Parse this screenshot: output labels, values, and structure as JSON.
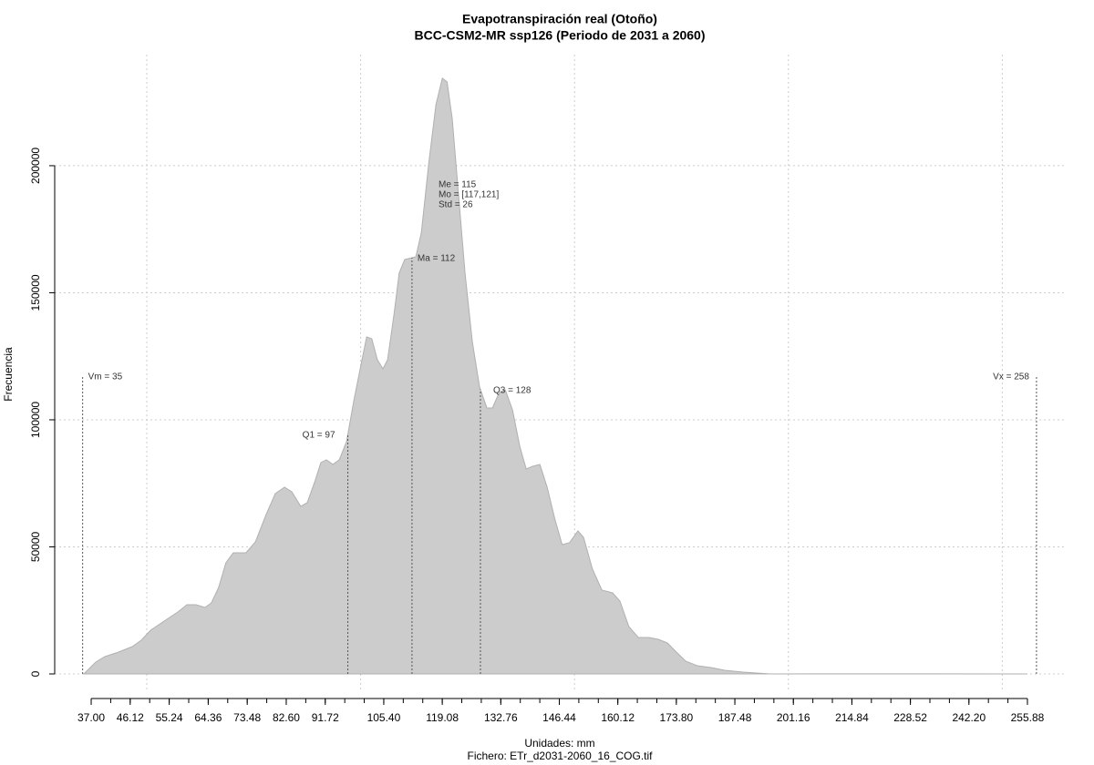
{
  "chart_data": {
    "type": "area",
    "title": "Evapotranspiración real (Otoño)",
    "subtitle": "BCC-CSM2-MR ssp126 (Periodo de 2031 a 2060)",
    "xlabel": "Unidades: mm",
    "caption": "Fichero: ETr_d2031-2060_16_COG.tif",
    "ylabel": "Frecuencia",
    "color": "#cccccc",
    "x": [
      35.3,
      37,
      38.07,
      40.2,
      43.4,
      46.6,
      48.7,
      50.9,
      54.05,
      57.25,
      59.4,
      61.5,
      63.6,
      65.1,
      66.8,
      68.5,
      70.2,
      73.2,
      75.4,
      77.9,
      80.05,
      82.2,
      83.9,
      86.0,
      87.5,
      89.2,
      90.7,
      92.0,
      93.5,
      95.0,
      96.7,
      98.4,
      100.1,
      101.4,
      102.6,
      103.9,
      105.2,
      106.3,
      107.8,
      109.0,
      110.3,
      112.9,
      114.2,
      115.9,
      117.6,
      119.1,
      120.2,
      121.4,
      122.9,
      124.4,
      126.1,
      127.8,
      129.5,
      130.8,
      132.3,
      133.8,
      135.5,
      137.2,
      138.7,
      140.2,
      141.9,
      143.6,
      145.4,
      147.1,
      148.8,
      150.8,
      152.1,
      154.2,
      156.4,
      158.9,
      160.6,
      162.7,
      164.9,
      167.4,
      169.6,
      171.7,
      173.8,
      176.0,
      178.7,
      181.9,
      185.1,
      189.4,
      195.8,
      207.5,
      255.88
    ],
    "values": [
      0,
      2870,
      4660,
      6810,
      8600,
      10750,
      13260,
      17200,
      20790,
      24370,
      27240,
      27240,
      26160,
      27960,
      34050,
      43730,
      47670,
      47670,
      51970,
      62720,
      70970,
      73480,
      71680,
      65950,
      67380,
      75270,
      83150,
      84230,
      82440,
      84230,
      91400,
      107530,
      121860,
      132620,
      131900,
      123660,
      120070,
      123660,
      141580,
      157710,
      163080,
      164160,
      173840,
      200720,
      224010,
      234410,
      232980,
      218640,
      188170,
      157710,
      130820,
      112900,
      104660,
      104660,
      110390,
      111830,
      103940,
      89610,
      80650,
      81720,
      82440,
      73480,
      60930,
      50900,
      51610,
      56270,
      53760,
      41220,
      32970,
      31900,
      28670,
      18640,
      14340,
      14340,
      13620,
      12190,
      8600,
      5020,
      3230,
      2510,
      1430,
      720,
      0,
      50,
      0
    ],
    "xlim": [
      28.47,
      265.05
    ],
    "ylim": [
      -7170,
      243700
    ],
    "xticks": [
      {
        "value": 37,
        "label": "37.00"
      },
      46.12,
      55.24,
      64.36,
      73.48,
      {
        "value": 82.6,
        "label": "82.60"
      },
      91.72,
      {
        "value": 105.4,
        "label": "105.40"
      },
      119.08,
      132.76,
      146.44,
      160.12,
      {
        "value": 173.8,
        "label": "173.80"
      },
      187.48,
      201.16,
      214.84,
      228.52,
      {
        "value": 242.2,
        "label": "242.20"
      },
      255.88
    ],
    "xminorticks": [
      37,
      41.56,
      46.12,
      50.68,
      55.24,
      59.8,
      64.36,
      68.92,
      73.48,
      78.04,
      82.6,
      87.16,
      91.72,
      96.28,
      100.84,
      105.4,
      109.96,
      114.52,
      119.08,
      123.64,
      128.2,
      132.76,
      137.32,
      141.88,
      146.44,
      151,
      155.56,
      160.12,
      164.68,
      169.24,
      173.8,
      178.36,
      182.92,
      187.48,
      192.04,
      196.6,
      201.16,
      205.72,
      210.28,
      214.84,
      219.4,
      223.96,
      228.52,
      233.08,
      237.64,
      242.2,
      246.76,
      251.32,
      255.88
    ],
    "xgrid": [
      50,
      100,
      150,
      200,
      250
    ],
    "yticks": [
      0,
      50000,
      100000,
      150000,
      200000
    ],
    "grid": true,
    "markers": [
      {
        "label": "Vm = 35",
        "value": 35
      },
      {
        "label": "Q1 = 97",
        "value": 97
      },
      {
        "label": "Ma = 112",
        "value": 112
      },
      {
        "label": "Q3 = 128",
        "value": 128
      },
      {
        "label": "Vx = 258",
        "value": 258
      }
    ],
    "stats_text": [
      "Me = 115",
      "Mo = [117,121]",
      "Std = 26"
    ]
  }
}
